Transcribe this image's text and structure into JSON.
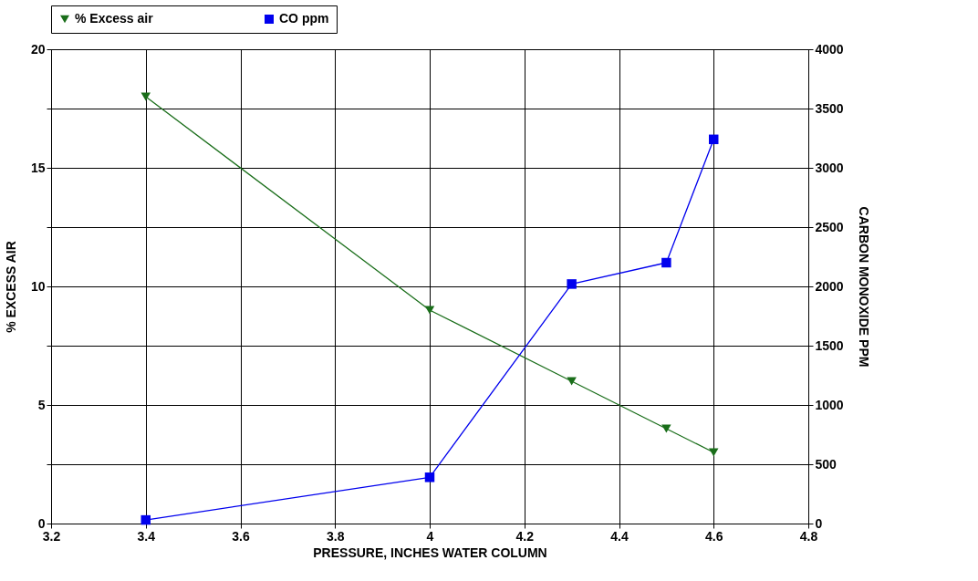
{
  "chart_data": {
    "type": "line",
    "xlabel": "PRESSURE, INCHES WATER COLUMN",
    "ylabel": "% EXCESS AIR",
    "y2label": "CARBON MONOXIDE PPM",
    "x": [
      3.4,
      4.0,
      4.3,
      4.5,
      4.6
    ],
    "xlim": [
      3.2,
      4.8
    ],
    "xticks": [
      3.2,
      3.4,
      3.6,
      3.8,
      4,
      4.2,
      4.4,
      4.6,
      4.8
    ],
    "ylim": [
      0,
      20
    ],
    "yticks": [
      0,
      {
        "value": 2.5,
        "label": null
      },
      5,
      {
        "value": 7.5,
        "label": null
      },
      10,
      {
        "value": 12.5,
        "label": null
      },
      15,
      {
        "value": 17.5,
        "label": null
      },
      20
    ],
    "y2lim": [
      0,
      4000
    ],
    "y2ticks": [
      0,
      500,
      1000,
      1500,
      2000,
      2500,
      3000,
      3500,
      4000
    ],
    "grid": true,
    "legend": "top",
    "line_style": "solid",
    "series": [
      {
        "name": "% Excess air",
        "color": "#1a6e1a",
        "marker": "triangle-down",
        "values": [
          18,
          9,
          6,
          4,
          3
        ]
      },
      {
        "name": "CO ppm",
        "color": "#0000ee",
        "marker": "square",
        "axis": "y2",
        "values": [
          30,
          390,
          2020,
          2200,
          3240
        ]
      }
    ]
  }
}
